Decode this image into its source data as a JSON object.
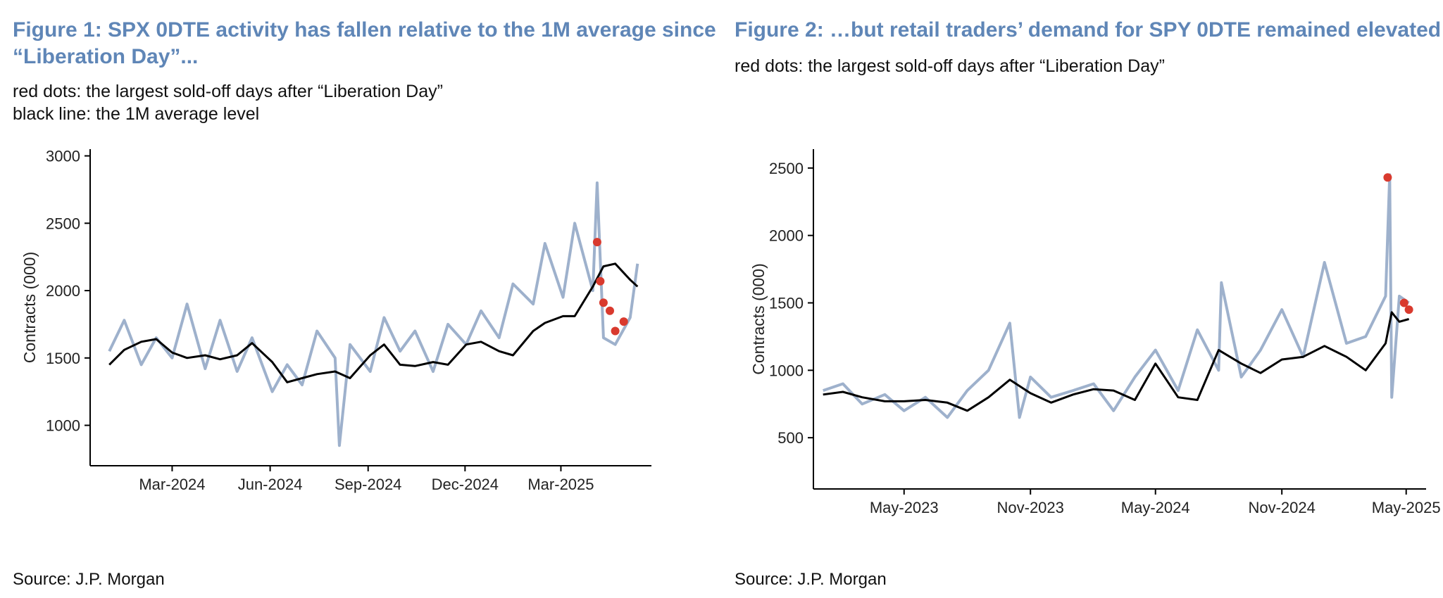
{
  "figure1": {
    "title": "Figure 1: SPX 0DTE activity has fallen relative to the 1M average since “Liberation Day”...",
    "note_line1": "red dots: the largest sold-off days after “Liberation Day”",
    "note_line2": "black line: the 1M average level",
    "source": "Source: J.P. Morgan"
  },
  "figure2": {
    "title": "Figure 2: …but retail traders’ demand for SPY 0DTE remained elevated",
    "note_line1": "red dots: the largest sold-off days after “Liberation Day”",
    "source": "Source: J.P. Morgan"
  },
  "colors": {
    "daily": "#9eb1cc",
    "average": "#000000",
    "sell_off_dots": "#d93a2e",
    "title": "#5f86b7"
  },
  "chart_data": [
    {
      "type": "line",
      "ylabel": "Contracts (000)",
      "ylim": [
        700,
        3050
      ],
      "xlim": [
        "2023-12-15",
        "2025-05-25"
      ],
      "y_ticks": [
        1000,
        1500,
        2000,
        2500,
        3000
      ],
      "x_ticks": [
        {
          "date": "2024-03-01",
          "label": "Mar-2024"
        },
        {
          "date": "2024-06-01",
          "label": "Jun-2024"
        },
        {
          "date": "2024-09-01",
          "label": "Sep-2024"
        },
        {
          "date": "2024-12-01",
          "label": "Dec-2024"
        },
        {
          "date": "2025-03-01",
          "label": "Mar-2025"
        }
      ],
      "grid": false,
      "legend": "none",
      "series": [
        {
          "role": "daily",
          "x": [
            "2024-01-02",
            "2024-01-16",
            "2024-02-01",
            "2024-02-15",
            "2024-03-01",
            "2024-03-15",
            "2024-04-01",
            "2024-04-15",
            "2024-05-01",
            "2024-05-15",
            "2024-06-03",
            "2024-06-17",
            "2024-07-01",
            "2024-07-15",
            "2024-08-01",
            "2024-08-05",
            "2024-08-15",
            "2024-09-03",
            "2024-09-16",
            "2024-10-01",
            "2024-10-15",
            "2024-11-01",
            "2024-11-15",
            "2024-12-02",
            "2024-12-16",
            "2025-01-02",
            "2025-01-15",
            "2025-02-03",
            "2025-02-14",
            "2025-03-03",
            "2025-03-14",
            "2025-03-31",
            "2025-04-04",
            "2025-04-10",
            "2025-04-21",
            "2025-05-05",
            "2025-05-12"
          ],
          "values": [
            1550,
            1780,
            1450,
            1650,
            1500,
            1900,
            1420,
            1780,
            1400,
            1650,
            1250,
            1450,
            1300,
            1700,
            1500,
            850,
            1600,
            1400,
            1800,
            1550,
            1700,
            1400,
            1750,
            1600,
            1850,
            1650,
            2050,
            1900,
            2350,
            1950,
            2500,
            2000,
            2800,
            1650,
            1600,
            1800,
            2200
          ]
        },
        {
          "role": "1M average",
          "x": [
            "2024-01-02",
            "2024-01-16",
            "2024-02-01",
            "2024-02-15",
            "2024-03-01",
            "2024-03-15",
            "2024-04-01",
            "2024-04-15",
            "2024-05-01",
            "2024-05-15",
            "2024-06-03",
            "2024-06-17",
            "2024-07-01",
            "2024-07-15",
            "2024-08-01",
            "2024-08-15",
            "2024-09-03",
            "2024-09-16",
            "2024-10-01",
            "2024-10-15",
            "2024-11-01",
            "2024-11-15",
            "2024-12-02",
            "2024-12-16",
            "2025-01-02",
            "2025-01-15",
            "2025-02-03",
            "2025-02-14",
            "2025-03-03",
            "2025-03-14",
            "2025-03-31",
            "2025-04-10",
            "2025-04-21",
            "2025-05-05",
            "2025-05-12"
          ],
          "values": [
            1450,
            1560,
            1620,
            1640,
            1540,
            1500,
            1520,
            1490,
            1520,
            1610,
            1470,
            1320,
            1350,
            1380,
            1400,
            1350,
            1520,
            1600,
            1450,
            1440,
            1470,
            1450,
            1600,
            1620,
            1550,
            1520,
            1700,
            1760,
            1810,
            1810,
            2030,
            2180,
            2200,
            2080,
            2030
          ]
        },
        {
          "role": "largest sold-off days",
          "x": [
            "2025-04-04",
            "2025-04-07",
            "2025-04-10",
            "2025-04-16",
            "2025-04-21",
            "2025-04-29"
          ],
          "values": [
            2360,
            2070,
            1910,
            1850,
            1700,
            1770
          ]
        }
      ]
    },
    {
      "type": "line",
      "ylabel": "Contracts (000)",
      "ylim": [
        120,
        2640
      ],
      "xlim": [
        "2022-12-20",
        "2025-05-30"
      ],
      "y_ticks": [
        500,
        1000,
        1500,
        2000,
        2500
      ],
      "x_ticks": [
        {
          "date": "2023-05-01",
          "label": "May-2023"
        },
        {
          "date": "2023-11-01",
          "label": "Nov-2023"
        },
        {
          "date": "2024-05-01",
          "label": "May-2024"
        },
        {
          "date": "2024-11-01",
          "label": "Nov-2024"
        },
        {
          "date": "2025-05-01",
          "label": "May-2025"
        }
      ],
      "grid": false,
      "legend": "none",
      "series": [
        {
          "role": "daily",
          "x": [
            "2023-01-03",
            "2023-02-01",
            "2023-03-01",
            "2023-04-03",
            "2023-05-01",
            "2023-06-01",
            "2023-07-03",
            "2023-08-01",
            "2023-09-01",
            "2023-10-02",
            "2023-10-16",
            "2023-11-01",
            "2023-12-01",
            "2024-01-02",
            "2024-02-01",
            "2024-03-01",
            "2024-04-01",
            "2024-05-01",
            "2024-06-03",
            "2024-07-01",
            "2024-08-01",
            "2024-08-05",
            "2024-09-03",
            "2024-10-01",
            "2024-11-01",
            "2024-12-02",
            "2025-01-02",
            "2025-02-03",
            "2025-03-03",
            "2025-04-01",
            "2025-04-07",
            "2025-04-10",
            "2025-04-21",
            "2025-05-05"
          ],
          "values": [
            850,
            900,
            750,
            820,
            700,
            800,
            650,
            850,
            1000,
            1350,
            650,
            950,
            800,
            850,
            900,
            700,
            950,
            1150,
            850,
            1300,
            1000,
            1650,
            950,
            1150,
            1450,
            1100,
            1800,
            1200,
            1250,
            1550,
            2450,
            800,
            1550,
            1500
          ]
        },
        {
          "role": "1M average",
          "x": [
            "2023-01-03",
            "2023-02-01",
            "2023-03-01",
            "2023-04-03",
            "2023-05-01",
            "2023-06-01",
            "2023-07-03",
            "2023-08-01",
            "2023-09-01",
            "2023-10-02",
            "2023-11-01",
            "2023-12-01",
            "2024-01-02",
            "2024-02-01",
            "2024-03-01",
            "2024-04-01",
            "2024-05-01",
            "2024-06-03",
            "2024-07-01",
            "2024-08-01",
            "2024-09-03",
            "2024-10-01",
            "2024-11-01",
            "2024-12-02",
            "2025-01-02",
            "2025-02-03",
            "2025-03-03",
            "2025-04-01",
            "2025-04-10",
            "2025-04-21",
            "2025-05-05"
          ],
          "values": [
            820,
            840,
            800,
            770,
            770,
            780,
            760,
            700,
            800,
            930,
            830,
            760,
            820,
            860,
            850,
            780,
            1050,
            800,
            780,
            1150,
            1050,
            980,
            1080,
            1100,
            1180,
            1100,
            1000,
            1200,
            1430,
            1360,
            1380
          ]
        },
        {
          "role": "largest sold-off days",
          "x": [
            "2025-04-04",
            "2025-04-28",
            "2025-05-05"
          ],
          "values": [
            2430,
            1500,
            1450
          ]
        }
      ]
    }
  ]
}
